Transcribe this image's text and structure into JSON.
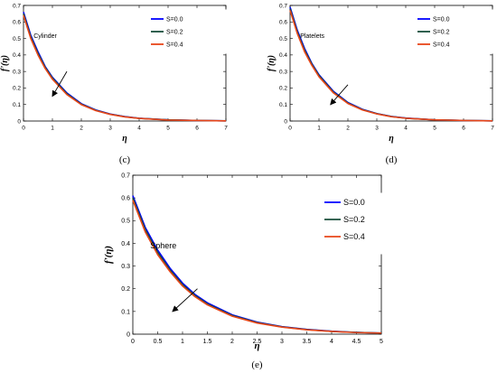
{
  "chart_data": [
    {
      "type": "line",
      "panel": "c",
      "caption": "(c)",
      "annotation": "Cylinder",
      "xlabel": "η",
      "ylabel": "f'(η)",
      "xlim": [
        0,
        7
      ],
      "ylim": [
        0,
        0.7
      ],
      "xticks": [
        "0",
        "1",
        "2",
        "3",
        "4",
        "5",
        "6",
        "7"
      ],
      "yticks": [
        "0",
        "0.1",
        "0.2",
        "0.3",
        "0.4",
        "0.5",
        "0.6",
        "0.7"
      ],
      "x": [
        0,
        0.25,
        0.5,
        0.75,
        1,
        1.5,
        2,
        2.5,
        3,
        3.5,
        4,
        5,
        6,
        7
      ],
      "series": [
        {
          "name": "S=0.0",
          "color": "#0000ff",
          "values": [
            0.66,
            0.52,
            0.42,
            0.33,
            0.265,
            0.17,
            0.105,
            0.067,
            0.042,
            0.027,
            0.017,
            0.007,
            0.003,
            0.001
          ]
        },
        {
          "name": "S=0.2",
          "color": "#1a4f3c",
          "values": [
            0.65,
            0.51,
            0.41,
            0.325,
            0.26,
            0.165,
            0.102,
            0.065,
            0.041,
            0.026,
            0.016,
            0.007,
            0.003,
            0.001
          ]
        },
        {
          "name": "S=0.4",
          "color": "#e8461a",
          "values": [
            0.64,
            0.5,
            0.4,
            0.318,
            0.253,
            0.16,
            0.099,
            0.063,
            0.04,
            0.025,
            0.016,
            0.006,
            0.003,
            0.001
          ]
        }
      ],
      "legend_position": "top-right",
      "arrow": {
        "from": [
          1.5,
          0.3
        ],
        "to": [
          1.0,
          0.15
        ]
      }
    },
    {
      "type": "line",
      "panel": "d",
      "caption": "(d)",
      "annotation": "Platelets",
      "xlabel": "η",
      "ylabel": "f'(η)",
      "xlim": [
        0,
        7
      ],
      "ylim": [
        0,
        0.7
      ],
      "xticks": [
        "0",
        "1",
        "2",
        "3",
        "4",
        "5",
        "6",
        "7"
      ],
      "yticks": [
        "0",
        "0.1",
        "0.2",
        "0.3",
        "0.4",
        "0.5",
        "0.6",
        "0.7"
      ],
      "x": [
        0,
        0.25,
        0.5,
        0.75,
        1,
        1.5,
        2,
        2.5,
        3,
        3.5,
        4,
        5,
        6,
        7
      ],
      "series": [
        {
          "name": "S=0.0",
          "color": "#0000ff",
          "values": [
            0.69,
            0.55,
            0.44,
            0.35,
            0.28,
            0.18,
            0.112,
            0.071,
            0.045,
            0.028,
            0.018,
            0.007,
            0.003,
            0.001
          ]
        },
        {
          "name": "S=0.2",
          "color": "#1a4f3c",
          "values": [
            0.68,
            0.54,
            0.43,
            0.345,
            0.275,
            0.175,
            0.109,
            0.069,
            0.044,
            0.027,
            0.017,
            0.007,
            0.003,
            0.001
          ]
        },
        {
          "name": "S=0.4",
          "color": "#e8461a",
          "values": [
            0.67,
            0.53,
            0.42,
            0.338,
            0.268,
            0.17,
            0.106,
            0.067,
            0.043,
            0.026,
            0.017,
            0.007,
            0.003,
            0.001
          ]
        }
      ],
      "legend_position": "top-right",
      "arrow": {
        "from": [
          2.0,
          0.22
        ],
        "to": [
          1.4,
          0.1
        ]
      }
    },
    {
      "type": "line",
      "panel": "e",
      "caption": "(e)",
      "annotation": "Sphere",
      "xlabel": "η",
      "ylabel": "f'(η)",
      "xlim": [
        0,
        5
      ],
      "ylim": [
        0,
        0.7
      ],
      "xticks": [
        "0",
        "0.5",
        "1",
        "1.5",
        "2",
        "2.5",
        "3",
        "3.5",
        "4",
        "4.5",
        "5"
      ],
      "yticks": [
        "0",
        "0.1",
        "0.2",
        "0.3",
        "0.4",
        "0.5",
        "0.6",
        "0.7"
      ],
      "x": [
        0,
        0.25,
        0.5,
        0.75,
        1,
        1.25,
        1.5,
        2,
        2.5,
        3,
        3.5,
        4,
        4.5,
        5
      ],
      "series": [
        {
          "name": "S=0.0",
          "color": "#0000ff",
          "values": [
            0.61,
            0.47,
            0.37,
            0.29,
            0.225,
            0.175,
            0.138,
            0.085,
            0.053,
            0.033,
            0.021,
            0.013,
            0.008,
            0.005
          ]
        },
        {
          "name": "S=0.2",
          "color": "#1a4f3c",
          "values": [
            0.6,
            0.46,
            0.36,
            0.282,
            0.218,
            0.17,
            0.133,
            0.082,
            0.051,
            0.032,
            0.02,
            0.012,
            0.008,
            0.005
          ]
        },
        {
          "name": "S=0.4",
          "color": "#e8461a",
          "values": [
            0.59,
            0.45,
            0.35,
            0.275,
            0.212,
            0.165,
            0.129,
            0.079,
            0.049,
            0.031,
            0.019,
            0.012,
            0.007,
            0.005
          ]
        }
      ],
      "legend_position": "top-right",
      "arrow": {
        "from": [
          1.3,
          0.2
        ],
        "to": [
          0.8,
          0.1
        ]
      }
    }
  ]
}
